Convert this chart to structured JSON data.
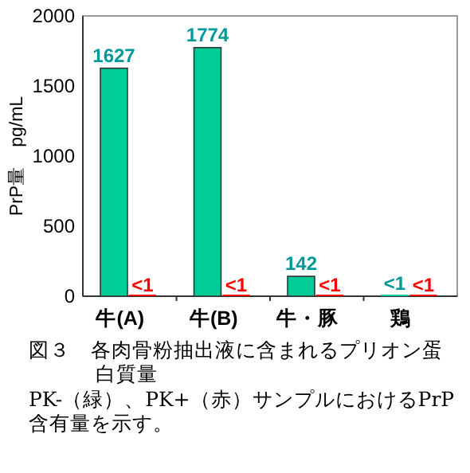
{
  "chart_data": {
    "type": "bar",
    "title": "図３　各肉骨粉抽出液に含まれるプリオン蛋白質量",
    "ylabel": "PrP量　pg/mL",
    "categories": [
      "牛(A)",
      "牛(B)",
      "牛・豚",
      "鶏"
    ],
    "series": [
      {
        "color": "#00cc99",
        "values": [
          1627,
          1774,
          142,
          0
        ],
        "value_labels": [
          "1627",
          "1774",
          "142",
          "<1"
        ]
      },
      {
        "color": "#ff0000",
        "values": [
          0,
          0,
          0,
          0
        ],
        "value_labels": [
          "<1",
          "<1",
          "<1",
          "<1"
        ]
      }
    ],
    "ylim": [
      0,
      2000
    ],
    "yticks": [
      0,
      500,
      1000,
      1500,
      2000
    ],
    "grid": false,
    "annotations": [
      "PK-（緑）、PK+（赤）サンプルにおけるPrP含有量を示す。"
    ]
  }
}
